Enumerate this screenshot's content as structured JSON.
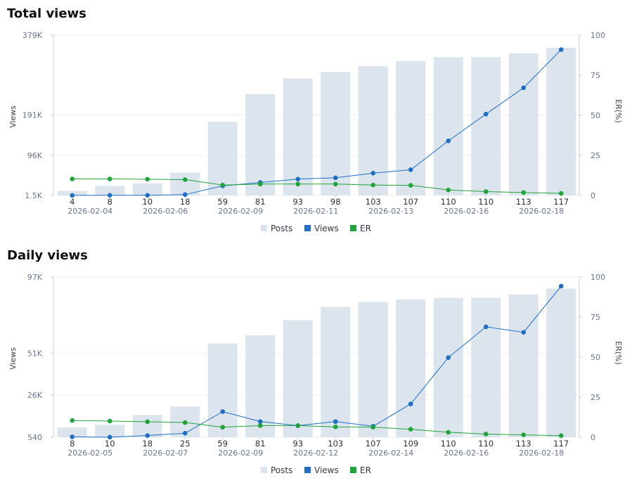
{
  "colors": {
    "posts": "#dce4ee",
    "views": "#1f6fc4",
    "er": "#1fa33a",
    "grid": "#eef0f4",
    "axis": "#c9ccd4"
  },
  "legend": {
    "posts": "Posts",
    "views": "Views",
    "er": "ER"
  },
  "chart_data": [
    {
      "type": "bar",
      "title": "Total views",
      "ylabel": "Views",
      "y2label": "ER(%)",
      "left_ticks": [
        {
          "label": "1.5K",
          "value": 1500
        },
        {
          "label": "96K",
          "value": 96000
        },
        {
          "label": "191K",
          "value": 191000
        },
        {
          "label": "379K",
          "value": 379000
        }
      ],
      "right_ticks": [
        0,
        25,
        50,
        75,
        100
      ],
      "ylim": [
        1500,
        379000
      ],
      "y2lim": [
        0,
        100
      ],
      "categories": [
        "4",
        "8",
        "10",
        "18",
        "59",
        "81",
        "93",
        "98",
        "103",
        "107",
        "110",
        "110",
        "113",
        "117"
      ],
      "date_labels": [
        "",
        "2026-02-04",
        "",
        "2026-02-06",
        "",
        "2026-02-09",
        "",
        "2026-02-11",
        "",
        "2026-02-13",
        "",
        "2026-02-16",
        "",
        "2026-02-18"
      ],
      "series": [
        {
          "name": "Posts",
          "kind": "bar",
          "axis": "left",
          "values": [
            12000,
            24000,
            30000,
            55000,
            175000,
            240000,
            277000,
            292000,
            306000,
            318000,
            327000,
            327000,
            336000,
            349000
          ]
        },
        {
          "name": "Views",
          "kind": "line",
          "axis": "left",
          "values": [
            1600,
            1800,
            1900,
            3500,
            24000,
            32000,
            40000,
            43000,
            54000,
            62000,
            130000,
            193000,
            255000,
            345000
          ]
        },
        {
          "name": "ER",
          "kind": "line",
          "axis": "right",
          "values": [
            10.3,
            10.3,
            10.1,
            9.9,
            6.5,
            7.1,
            7.1,
            7.1,
            6.5,
            6.3,
            3.4,
            2.4,
            1.8,
            1.3
          ]
        }
      ]
    },
    {
      "type": "bar",
      "title": "Daily views",
      "ylabel": "Views",
      "y2label": "ER(%)",
      "left_ticks": [
        {
          "label": "540",
          "value": 540
        },
        {
          "label": "26K",
          "value": 26000
        },
        {
          "label": "51K",
          "value": 51000
        },
        {
          "label": "97K",
          "value": 97000
        }
      ],
      "right_ticks": [
        0,
        25,
        50,
        75,
        100
      ],
      "ylim": [
        540,
        97000
      ],
      "y2lim": [
        0,
        100
      ],
      "categories": [
        "8",
        "10",
        "18",
        "25",
        "59",
        "81",
        "93",
        "103",
        "107",
        "109",
        "110",
        "110",
        "113",
        "117"
      ],
      "date_labels": [
        "",
        "2026-02-05",
        "",
        "2026-02-07",
        "",
        "2026-02-09",
        "",
        "2026-02-12",
        "",
        "2026-02-14",
        "",
        "2026-02-16",
        "",
        "2026-02-18"
      ],
      "series": [
        {
          "name": "Posts",
          "kind": "bar",
          "axis": "left",
          "values": [
            6500,
            8000,
            14000,
            19000,
            57000,
            62000,
            71000,
            79000,
            82000,
            83500,
            84500,
            84500,
            86500,
            90000
          ]
        },
        {
          "name": "Views",
          "kind": "line",
          "axis": "left",
          "values": [
            800,
            600,
            1600,
            3000,
            16000,
            10000,
            7500,
            10000,
            7200,
            20600,
            48500,
            67000,
            63700,
            91500
          ]
        },
        {
          "name": "ER",
          "kind": "line",
          "axis": "right",
          "values": [
            10.5,
            10.1,
            9.7,
            9.2,
            6.3,
            7.3,
            7.3,
            6.5,
            6.3,
            5.0,
            3.1,
            2.0,
            1.5,
            1.0
          ]
        }
      ]
    }
  ]
}
